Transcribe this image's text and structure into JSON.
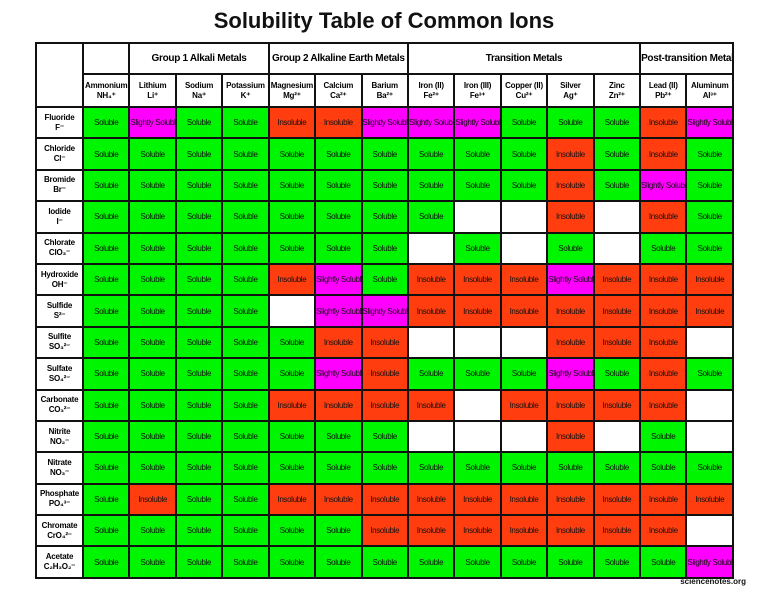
{
  "title": "Solubility Table of Common Ions",
  "groups": [
    {
      "label": "Group 1 Alkali Metals",
      "span": 3
    },
    {
      "label": "Group 2 Alkaline Earth Metals",
      "span": 3
    },
    {
      "label": "Transition Metals",
      "span": 5
    },
    {
      "label": "Post-transition Metals",
      "span": 2
    }
  ],
  "columns": [
    {
      "name": "Ammonium",
      "ion": "NH₄⁺"
    },
    {
      "name": "Lithium",
      "ion": "Li⁺"
    },
    {
      "name": "Sodium",
      "ion": "Na⁺"
    },
    {
      "name": "Potassium",
      "ion": "K⁺"
    },
    {
      "name": "Magnesium",
      "ion": "Mg²⁺"
    },
    {
      "name": "Calcium",
      "ion": "Ca²⁺"
    },
    {
      "name": "Barium",
      "ion": "Ba²⁺"
    },
    {
      "name": "Iron (II)",
      "ion": "Fe²⁺"
    },
    {
      "name": "Iron (III)",
      "ion": "Fe³⁺"
    },
    {
      "name": "Copper (II)",
      "ion": "Cu²⁺"
    },
    {
      "name": "Silver",
      "ion": "Ag⁺"
    },
    {
      "name": "Zinc",
      "ion": "Zn²⁺"
    },
    {
      "name": "Lead (II)",
      "ion": "Pb²⁺"
    },
    {
      "name": "Aluminum",
      "ion": "Al³⁺"
    }
  ],
  "cell_colors": {
    "Soluble": "#00f500",
    "Insoluble": "#ff3d0f",
    "Slightly Soluble": "#ff00ff"
  },
  "rows": [
    {
      "name": "Fluoride",
      "ion": "F⁻",
      "cells": [
        "Soluble",
        "Slightly Soluble",
        "Soluble",
        "Soluble",
        "Insoluble",
        "Insoluble",
        "Slightly Soluble",
        "Slightly Soluble",
        "Slightly Soluble",
        "Soluble",
        "Soluble",
        "Soluble",
        "Insoluble",
        "Slightly Soluble"
      ]
    },
    {
      "name": "Chloride",
      "ion": "Cl⁻",
      "cells": [
        "Soluble",
        "Soluble",
        "Soluble",
        "Soluble",
        "Soluble",
        "Soluble",
        "Soluble",
        "Soluble",
        "Soluble",
        "Soluble",
        "Insoluble",
        "Soluble",
        "Insoluble",
        "Soluble"
      ]
    },
    {
      "name": "Bromide",
      "ion": "Br⁻",
      "cells": [
        "Soluble",
        "Soluble",
        "Soluble",
        "Soluble",
        "Soluble",
        "Soluble",
        "Soluble",
        "Soluble",
        "Soluble",
        "Soluble",
        "Insoluble",
        "Soluble",
        "Slightly Soluble",
        "Soluble"
      ]
    },
    {
      "name": "Iodide",
      "ion": "I⁻",
      "cells": [
        "Soluble",
        "Soluble",
        "Soluble",
        "Soluble",
        "Soluble",
        "Soluble",
        "Soluble",
        "Soluble",
        null,
        null,
        "Insoluble",
        null,
        "Insoluble",
        "Soluble"
      ]
    },
    {
      "name": "Chlorate",
      "ion": "ClO₃⁻",
      "cells": [
        "Soluble",
        "Soluble",
        "Soluble",
        "Soluble",
        "Soluble",
        "Soluble",
        "Soluble",
        null,
        "Soluble",
        null,
        "Soluble",
        null,
        "Soluble",
        "Soluble"
      ]
    },
    {
      "name": "Hydroxide",
      "ion": "OH⁻",
      "cells": [
        "Soluble",
        "Soluble",
        "Soluble",
        "Soluble",
        "Insoluble",
        "Slightly Soluble",
        "Soluble",
        "Insoluble",
        "Insoluble",
        "Insoluble",
        "Slightly Soluble",
        "Insoluble",
        "Insoluble",
        "Insoluble"
      ]
    },
    {
      "name": "Sulfide",
      "ion": "S²⁻",
      "cells": [
        "Soluble",
        "Soluble",
        "Soluble",
        "Soluble",
        null,
        "Slightly Soluble",
        "Slightly Soluble",
        "Insoluble",
        "Insoluble",
        "Insoluble",
        "Insoluble",
        "Insoluble",
        "Insoluble",
        "Insoluble"
      ]
    },
    {
      "name": "Sulfite",
      "ion": "SO₃²⁻",
      "cells": [
        "Soluble",
        "Soluble",
        "Soluble",
        "Soluble",
        "Soluble",
        "Insoluble",
        "Insoluble",
        null,
        null,
        null,
        "Insoluble",
        "Insoluble",
        "Insoluble",
        null
      ]
    },
    {
      "name": "Sulfate",
      "ion": "SO₄²⁻",
      "cells": [
        "Soluble",
        "Soluble",
        "Soluble",
        "Soluble",
        "Soluble",
        "Slightly Soluble",
        "Insoluble",
        "Soluble",
        "Soluble",
        "Soluble",
        "Slightly Soluble",
        "Soluble",
        "Insoluble",
        "Soluble"
      ]
    },
    {
      "name": "Carbonate",
      "ion": "CO₃²⁻",
      "cells": [
        "Soluble",
        "Soluble",
        "Soluble",
        "Soluble",
        "Insoluble",
        "Insoluble",
        "Insoluble",
        "Insoluble",
        null,
        "Insoluble",
        "Insoluble",
        "Insoluble",
        "Insoluble",
        null
      ]
    },
    {
      "name": "Nitrite",
      "ion": "NO₂⁻",
      "cells": [
        "Soluble",
        "Soluble",
        "Soluble",
        "Soluble",
        "Soluble",
        "Soluble",
        "Soluble",
        null,
        null,
        null,
        "Insoluble",
        null,
        "Soluble",
        null
      ]
    },
    {
      "name": "Nitrate",
      "ion": "NO₃⁻",
      "cells": [
        "Soluble",
        "Soluble",
        "Soluble",
        "Soluble",
        "Soluble",
        "Soluble",
        "Soluble",
        "Soluble",
        "Soluble",
        "Soluble",
        "Soluble",
        "Soluble",
        "Soluble",
        "Soluble"
      ]
    },
    {
      "name": "Phosphate",
      "ion": "PO₄³⁻",
      "cells": [
        "Soluble",
        "Insoluble",
        "Soluble",
        "Soluble",
        "Insoluble",
        "Insoluble",
        "Insoluble",
        "Insoluble",
        "Insoluble",
        "Insoluble",
        "Insoluble",
        "Insoluble",
        "Insoluble",
        "Insoluble"
      ]
    },
    {
      "name": "Chromate",
      "ion": "CrO₄²⁻",
      "cells": [
        "Soluble",
        "Soluble",
        "Soluble",
        "Soluble",
        "Soluble",
        "Soluble",
        "Insoluble",
        "Insoluble",
        "Insoluble",
        "Insoluble",
        "Insoluble",
        "Insoluble",
        "Insoluble",
        null
      ]
    },
    {
      "name": "Acetate",
      "ion": "C₂H₃O₂⁻",
      "cells": [
        "Soluble",
        "Soluble",
        "Soluble",
        "Soluble",
        "Soluble",
        "Soluble",
        "Soluble",
        "Soluble",
        "Soluble",
        "Soluble",
        "Soluble",
        "Soluble",
        "Soluble",
        "Slightly Soluble"
      ]
    }
  ],
  "footer": "sciencenotes.org"
}
